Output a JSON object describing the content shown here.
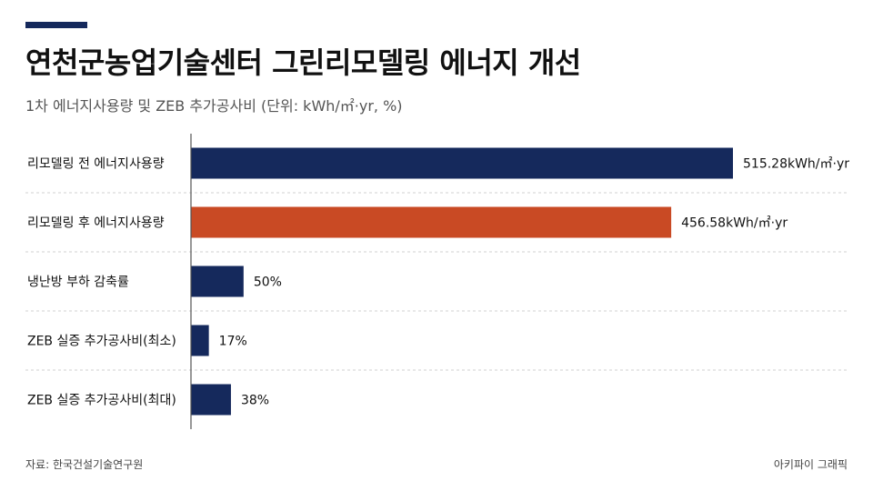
{
  "header": {
    "title": "연천군농업기술센터 그린리모델링 에너지 개선",
    "subtitle": "1차 에너지사용량 및 ZEB 추가공사비 (단위: kWh/㎡·yr, %)"
  },
  "footer": {
    "source": "자료: 한국건설기술연구원",
    "brand": "아키파이 그래픽"
  },
  "colors": {
    "navy": "#15295c",
    "orange": "#c94a24",
    "grid": "#d0d0d0",
    "axis": "#555555"
  },
  "chart_data": {
    "type": "bar",
    "orientation": "horizontal",
    "categories": [
      "리모델링 전 에너지사용량",
      "리모델링 후 에너지사용량",
      "냉난방 부하 감축률",
      "ZEB 실증 추가공사비(최소)",
      "ZEB 실증 추가공사비(최대)"
    ],
    "values": [
      515.28,
      456.58,
      50,
      17,
      38
    ],
    "value_labels": [
      "515.28kWh/㎡·yr",
      "456.58kWh/㎡·yr",
      "50%",
      "17%",
      "38%"
    ],
    "bar_colors": [
      "navy",
      "orange",
      "navy",
      "navy",
      "navy"
    ],
    "grid": true
  }
}
